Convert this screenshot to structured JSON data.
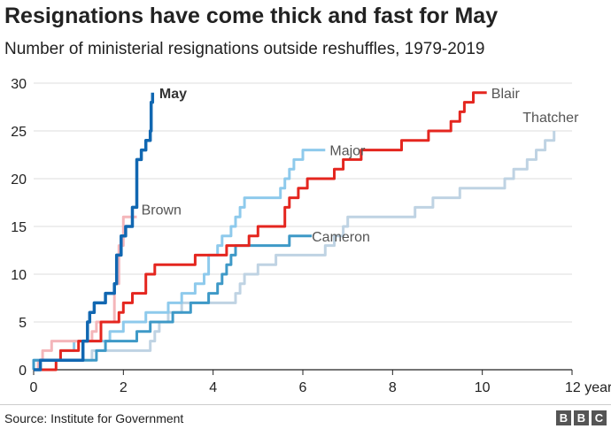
{
  "chart_data": {
    "type": "line",
    "title": "Resignations have come thick and fast for May",
    "subtitle": "Number of ministerial resignations outside reshuffles, 1979-2019",
    "xlabel": "",
    "ylabel": "",
    "x_unit": "years",
    "xlim": [
      0,
      12
    ],
    "ylim": [
      0,
      30
    ],
    "x_ticks": [
      0,
      2,
      4,
      6,
      8,
      10,
      12
    ],
    "x_tick_labels": [
      "0",
      "2",
      "4",
      "6",
      "8",
      "10",
      "12 years"
    ],
    "y_ticks": [
      0,
      5,
      10,
      15,
      20,
      25,
      30
    ],
    "y_tick_labels": [
      "0",
      "5",
      "10",
      "15",
      "20",
      "25",
      "30"
    ],
    "grid": true,
    "series": [
      {
        "name": "Thatcher",
        "color": "#bfd3e3",
        "bold": false,
        "points": [
          [
            0,
            0
          ],
          [
            0,
            1
          ],
          [
            1.3,
            1
          ],
          [
            1.3,
            2
          ],
          [
            2.6,
            2
          ],
          [
            2.6,
            3
          ],
          [
            2.7,
            3
          ],
          [
            2.7,
            4
          ],
          [
            2.8,
            4
          ],
          [
            2.8,
            5
          ],
          [
            3,
            5
          ],
          [
            3,
            6
          ],
          [
            3.3,
            6
          ],
          [
            3.3,
            7
          ],
          [
            4.5,
            7
          ],
          [
            4.5,
            8
          ],
          [
            4.6,
            8
          ],
          [
            4.6,
            9
          ],
          [
            4.7,
            9
          ],
          [
            4.7,
            10
          ],
          [
            5,
            10
          ],
          [
            5,
            11
          ],
          [
            5.4,
            11
          ],
          [
            5.4,
            12
          ],
          [
            6.5,
            12
          ],
          [
            6.5,
            13
          ],
          [
            6.7,
            13
          ],
          [
            6.7,
            14
          ],
          [
            6.9,
            14
          ],
          [
            6.9,
            15
          ],
          [
            7,
            15
          ],
          [
            7,
            16
          ],
          [
            8.5,
            16
          ],
          [
            8.5,
            17
          ],
          [
            8.9,
            17
          ],
          [
            8.9,
            18
          ],
          [
            9.5,
            18
          ],
          [
            9.5,
            19
          ],
          [
            10.5,
            19
          ],
          [
            10.5,
            20
          ],
          [
            10.7,
            20
          ],
          [
            10.7,
            21
          ],
          [
            11,
            21
          ],
          [
            11,
            22
          ],
          [
            11.2,
            22
          ],
          [
            11.2,
            23
          ],
          [
            11.4,
            23
          ],
          [
            11.4,
            24
          ],
          [
            11.6,
            24
          ],
          [
            11.6,
            25
          ]
        ]
      },
      {
        "name": "Major",
        "color": "#8ecaec",
        "bold": false,
        "points": [
          [
            0,
            0
          ],
          [
            0,
            1
          ],
          [
            0.6,
            1
          ],
          [
            0.6,
            2
          ],
          [
            0.9,
            2
          ],
          [
            0.9,
            3
          ],
          [
            1.7,
            3
          ],
          [
            1.7,
            4
          ],
          [
            2,
            4
          ],
          [
            2,
            5
          ],
          [
            2.5,
            5
          ],
          [
            2.5,
            6
          ],
          [
            3,
            6
          ],
          [
            3,
            7
          ],
          [
            3.3,
            7
          ],
          [
            3.3,
            8
          ],
          [
            3.6,
            8
          ],
          [
            3.6,
            9
          ],
          [
            3.8,
            9
          ],
          [
            3.8,
            10
          ],
          [
            3.9,
            10
          ],
          [
            3.9,
            12
          ],
          [
            4.1,
            12
          ],
          [
            4.1,
            13
          ],
          [
            4.2,
            13
          ],
          [
            4.2,
            14
          ],
          [
            4.4,
            14
          ],
          [
            4.4,
            15
          ],
          [
            4.5,
            15
          ],
          [
            4.5,
            16
          ],
          [
            4.6,
            16
          ],
          [
            4.6,
            17
          ],
          [
            4.7,
            17
          ],
          [
            4.7,
            18
          ],
          [
            5.5,
            18
          ],
          [
            5.5,
            19
          ],
          [
            5.6,
            19
          ],
          [
            5.6,
            20
          ],
          [
            5.7,
            20
          ],
          [
            5.7,
            21
          ],
          [
            5.8,
            21
          ],
          [
            5.8,
            22
          ],
          [
            6,
            22
          ],
          [
            6,
            23
          ],
          [
            6.5,
            23
          ]
        ]
      },
      {
        "name": "Brown",
        "color": "#f4b6ba",
        "bold": false,
        "points": [
          [
            0,
            0
          ],
          [
            0.1,
            0
          ],
          [
            0.1,
            1
          ],
          [
            0.2,
            1
          ],
          [
            0.2,
            2
          ],
          [
            0.4,
            2
          ],
          [
            0.4,
            3
          ],
          [
            1.3,
            3
          ],
          [
            1.3,
            4
          ],
          [
            1.4,
            4
          ],
          [
            1.4,
            5
          ],
          [
            1.8,
            5
          ],
          [
            1.8,
            9
          ],
          [
            1.9,
            9
          ],
          [
            1.9,
            13
          ],
          [
            2,
            13
          ],
          [
            2,
            16
          ],
          [
            2.3,
            16
          ]
        ]
      },
      {
        "name": "Cameron",
        "color": "#3e99c7",
        "bold": false,
        "points": [
          [
            0,
            0
          ],
          [
            0,
            1
          ],
          [
            1.4,
            1
          ],
          [
            1.4,
            2
          ],
          [
            1.6,
            2
          ],
          [
            1.6,
            3
          ],
          [
            2.3,
            3
          ],
          [
            2.3,
            4
          ],
          [
            2.6,
            4
          ],
          [
            2.6,
            5
          ],
          [
            3.1,
            5
          ],
          [
            3.1,
            6
          ],
          [
            3.5,
            6
          ],
          [
            3.5,
            7
          ],
          [
            3.9,
            7
          ],
          [
            3.9,
            8
          ],
          [
            4.1,
            8
          ],
          [
            4.1,
            9
          ],
          [
            4.2,
            9
          ],
          [
            4.2,
            10
          ],
          [
            4.3,
            10
          ],
          [
            4.3,
            11
          ],
          [
            4.4,
            11
          ],
          [
            4.4,
            12
          ],
          [
            4.5,
            12
          ],
          [
            4.5,
            13
          ],
          [
            5.7,
            13
          ],
          [
            5.7,
            14
          ],
          [
            6.2,
            14
          ]
        ]
      },
      {
        "name": "Blair",
        "color": "#e4261f",
        "bold": false,
        "points": [
          [
            0,
            0
          ],
          [
            0.5,
            0
          ],
          [
            0.5,
            1
          ],
          [
            0.6,
            1
          ],
          [
            0.6,
            2
          ],
          [
            1,
            2
          ],
          [
            1,
            3
          ],
          [
            1.5,
            3
          ],
          [
            1.5,
            5
          ],
          [
            1.9,
            5
          ],
          [
            1.9,
            6
          ],
          [
            2,
            6
          ],
          [
            2,
            7
          ],
          [
            2.2,
            7
          ],
          [
            2.2,
            8
          ],
          [
            2.5,
            8
          ],
          [
            2.5,
            10
          ],
          [
            2.7,
            10
          ],
          [
            2.7,
            11
          ],
          [
            3.6,
            11
          ],
          [
            3.6,
            12
          ],
          [
            4.3,
            12
          ],
          [
            4.3,
            13
          ],
          [
            4.8,
            13
          ],
          [
            4.8,
            14
          ],
          [
            5,
            14
          ],
          [
            5,
            15
          ],
          [
            5.6,
            15
          ],
          [
            5.6,
            17
          ],
          [
            5.7,
            17
          ],
          [
            5.7,
            18
          ],
          [
            5.9,
            18
          ],
          [
            5.9,
            19
          ],
          [
            6.1,
            19
          ],
          [
            6.1,
            20
          ],
          [
            6.7,
            20
          ],
          [
            6.7,
            21
          ],
          [
            6.9,
            21
          ],
          [
            6.9,
            22
          ],
          [
            7.3,
            22
          ],
          [
            7.3,
            23
          ],
          [
            8.2,
            23
          ],
          [
            8.2,
            24
          ],
          [
            8.8,
            24
          ],
          [
            8.8,
            25
          ],
          [
            9.3,
            25
          ],
          [
            9.3,
            26
          ],
          [
            9.5,
            26
          ],
          [
            9.5,
            27
          ],
          [
            9.6,
            27
          ],
          [
            9.6,
            28
          ],
          [
            9.8,
            28
          ],
          [
            9.8,
            29
          ],
          [
            10.1,
            29
          ]
        ]
      },
      {
        "name": "May",
        "color": "#1167b1",
        "bold": true,
        "points": [
          [
            0,
            0
          ],
          [
            0.15,
            0
          ],
          [
            0.15,
            1
          ],
          [
            1.1,
            1
          ],
          [
            1.1,
            3
          ],
          [
            1.2,
            3
          ],
          [
            1.2,
            5
          ],
          [
            1.25,
            5
          ],
          [
            1.25,
            6
          ],
          [
            1.35,
            6
          ],
          [
            1.35,
            7
          ],
          [
            1.6,
            7
          ],
          [
            1.6,
            8
          ],
          [
            1.8,
            8
          ],
          [
            1.8,
            9
          ],
          [
            1.85,
            9
          ],
          [
            1.85,
            12
          ],
          [
            1.95,
            12
          ],
          [
            1.95,
            14
          ],
          [
            2.05,
            14
          ],
          [
            2.05,
            15
          ],
          [
            2.2,
            15
          ],
          [
            2.2,
            17
          ],
          [
            2.3,
            17
          ],
          [
            2.3,
            22
          ],
          [
            2.4,
            22
          ],
          [
            2.4,
            23
          ],
          [
            2.5,
            23
          ],
          [
            2.5,
            24
          ],
          [
            2.6,
            24
          ],
          [
            2.6,
            25
          ],
          [
            2.62,
            25
          ],
          [
            2.62,
            28
          ],
          [
            2.65,
            28
          ],
          [
            2.65,
            29
          ]
        ]
      }
    ],
    "labels": [
      {
        "text": "May",
        "series": "May",
        "x": 2.8,
        "y": 29
      },
      {
        "text": "Brown",
        "series": "Brown",
        "x": 2.4,
        "y": 16.8
      },
      {
        "text": "Major",
        "series": "Major",
        "x": 6.6,
        "y": 23
      },
      {
        "text": "Cameron",
        "series": "Cameron",
        "x": 6.2,
        "y": 14
      },
      {
        "text": "Blair",
        "series": "Blair",
        "x": 10.2,
        "y": 29
      },
      {
        "text": "Thatcher",
        "series": "Thatcher",
        "x": 10.9,
        "y": 26.5
      }
    ]
  },
  "footer": {
    "source": "Source: Institute for Government",
    "logo": [
      "B",
      "B",
      "C"
    ]
  }
}
